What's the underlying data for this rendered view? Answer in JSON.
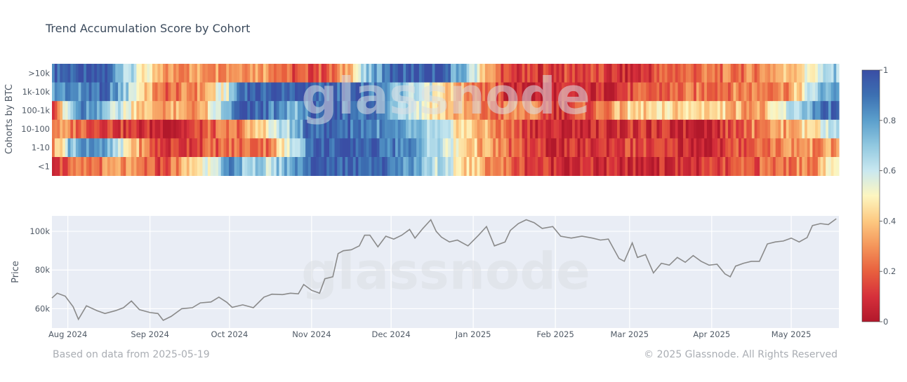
{
  "chart_data": [
    {
      "type": "heatmap",
      "title": "Trend Accumulation Score by Cohort",
      "ylabel": "Cohorts by BTC",
      "categories": [
        ">10k",
        "1k-10k",
        "100-1k",
        "10-100",
        "1-10",
        "<1"
      ],
      "x_range": [
        "2024-07-26",
        "2025-05-19"
      ],
      "zlim": [
        0,
        1
      ],
      "colorscale": [
        [
          0.0,
          "#b2182b"
        ],
        [
          0.1,
          "#d6303b"
        ],
        [
          0.2,
          "#e8603e"
        ],
        [
          0.3,
          "#f4955a"
        ],
        [
          0.4,
          "#fdc981"
        ],
        [
          0.5,
          "#fdf6c0"
        ],
        [
          0.6,
          "#c9e8f0"
        ],
        [
          0.7,
          "#91c8e0"
        ],
        [
          0.8,
          "#5b9fcc"
        ],
        [
          0.9,
          "#3c70b2"
        ],
        [
          1.0,
          "#3a4ea5"
        ]
      ],
      "colorbar_ticks": [
        "0",
        "0.2",
        "0.4",
        "0.6",
        "0.8",
        "1"
      ],
      "rows": [
        {
          "name": ">10k",
          "knots": [
            [
              "2024-07-26",
              0.95
            ],
            [
              "2024-08-15",
              0.95
            ],
            [
              "2024-08-25",
              0.6
            ],
            [
              "2024-09-05",
              0.3
            ],
            [
              "2024-10-15",
              0.35
            ],
            [
              "2024-10-25",
              0.15
            ],
            [
              "2024-11-10",
              0.2
            ],
            [
              "2024-11-20",
              0.6
            ],
            [
              "2024-12-01",
              0.95
            ],
            [
              "2024-12-20",
              0.95
            ],
            [
              "2025-01-01",
              0.6
            ],
            [
              "2025-01-08",
              0.3
            ],
            [
              "2025-01-15",
              0.1
            ],
            [
              "2025-02-15",
              0.15
            ],
            [
              "2025-03-01",
              0.05
            ],
            [
              "2025-03-15",
              0.2
            ],
            [
              "2025-04-15",
              0.25
            ],
            [
              "2025-05-01",
              0.4
            ],
            [
              "2025-05-15",
              0.6
            ],
            [
              "2025-05-19",
              0.7
            ]
          ]
        },
        {
          "name": "1k-10k",
          "knots": [
            [
              "2024-07-26",
              0.8
            ],
            [
              "2024-08-15",
              0.9
            ],
            [
              "2024-08-25",
              0.6
            ],
            [
              "2024-09-05",
              0.2
            ],
            [
              "2024-09-20",
              0.3
            ],
            [
              "2024-10-01",
              0.6
            ],
            [
              "2024-10-05",
              0.95
            ],
            [
              "2024-11-01",
              0.95
            ],
            [
              "2024-11-20",
              0.9
            ],
            [
              "2024-12-15",
              0.6
            ],
            [
              "2024-12-25",
              0.35
            ],
            [
              "2025-01-08",
              0.2
            ],
            [
              "2025-01-15",
              0.05
            ],
            [
              "2025-02-15",
              0.05
            ],
            [
              "2025-03-01",
              0.15
            ],
            [
              "2025-04-01",
              0.25
            ],
            [
              "2025-05-01",
              0.3
            ],
            [
              "2025-05-12",
              0.7
            ],
            [
              "2025-05-19",
              0.85
            ]
          ]
        },
        {
          "name": "100-1k",
          "knots": [
            [
              "2024-07-26",
              0.2
            ],
            [
              "2024-08-05",
              0.85
            ],
            [
              "2024-08-20",
              0.6
            ],
            [
              "2024-09-01",
              0.35
            ],
            [
              "2024-09-20",
              0.3
            ],
            [
              "2024-10-05",
              0.95
            ],
            [
              "2024-10-15",
              0.9
            ],
            [
              "2024-10-25",
              0.7
            ],
            [
              "2024-11-01",
              0.95
            ],
            [
              "2024-11-25",
              0.9
            ],
            [
              "2024-12-10",
              0.6
            ],
            [
              "2024-12-25",
              0.35
            ],
            [
              "2025-01-08",
              0.2
            ],
            [
              "2025-01-20",
              0.3
            ],
            [
              "2025-02-01",
              0.1
            ],
            [
              "2025-02-15",
              0.2
            ],
            [
              "2025-03-01",
              0.4
            ],
            [
              "2025-04-01",
              0.45
            ],
            [
              "2025-04-20",
              0.3
            ],
            [
              "2025-05-01",
              0.6
            ],
            [
              "2025-05-10",
              0.8
            ],
            [
              "2025-05-19",
              0.95
            ]
          ]
        },
        {
          "name": "10-100",
          "knots": [
            [
              "2024-07-26",
              0.3
            ],
            [
              "2024-08-10",
              0.2
            ],
            [
              "2024-08-25",
              0.1
            ],
            [
              "2024-09-10",
              0.05
            ],
            [
              "2024-09-25",
              0.2
            ],
            [
              "2024-10-05",
              0.25
            ],
            [
              "2024-10-15",
              0.5
            ],
            [
              "2024-10-25",
              0.7
            ],
            [
              "2024-11-01",
              0.95
            ],
            [
              "2024-11-20",
              0.9
            ],
            [
              "2024-12-10",
              0.7
            ],
            [
              "2024-12-25",
              0.5
            ],
            [
              "2025-01-08",
              0.3
            ],
            [
              "2025-01-20",
              0.15
            ],
            [
              "2025-02-01",
              0.05
            ],
            [
              "2025-03-01",
              0.1
            ],
            [
              "2025-04-01",
              0.05
            ],
            [
              "2025-04-15",
              0.25
            ],
            [
              "2025-05-01",
              0.35
            ],
            [
              "2025-05-12",
              0.5
            ],
            [
              "2025-05-19",
              0.7
            ]
          ]
        },
        {
          "name": "1-10",
          "knots": [
            [
              "2024-07-26",
              0.3
            ],
            [
              "2024-08-01",
              0.7
            ],
            [
              "2024-08-10",
              0.9
            ],
            [
              "2024-08-25",
              0.4
            ],
            [
              "2024-09-05",
              0.1
            ],
            [
              "2024-09-25",
              0.2
            ],
            [
              "2024-10-15",
              0.25
            ],
            [
              "2024-10-25",
              0.6
            ],
            [
              "2024-11-01",
              0.95
            ],
            [
              "2024-11-25",
              0.95
            ],
            [
              "2024-12-10",
              0.8
            ],
            [
              "2024-12-25",
              0.5
            ],
            [
              "2025-01-08",
              0.3
            ],
            [
              "2025-01-20",
              0.15
            ],
            [
              "2025-02-01",
              0.05
            ],
            [
              "2025-03-01",
              0.15
            ],
            [
              "2025-04-01",
              0.05
            ],
            [
              "2025-04-15",
              0.2
            ],
            [
              "2025-05-01",
              0.3
            ],
            [
              "2025-05-19",
              0.3
            ]
          ]
        },
        {
          "name": "<1",
          "knots": [
            [
              "2024-07-26",
              0.15
            ],
            [
              "2024-08-05",
              0.2
            ],
            [
              "2024-08-20",
              0.3
            ],
            [
              "2024-09-05",
              0.15
            ],
            [
              "2024-09-20",
              0.5
            ],
            [
              "2024-10-01",
              0.8
            ],
            [
              "2024-10-15",
              0.6
            ],
            [
              "2024-11-01",
              0.95
            ],
            [
              "2024-11-25",
              0.95
            ],
            [
              "2024-12-10",
              0.8
            ],
            [
              "2024-12-25",
              0.5
            ],
            [
              "2025-01-08",
              0.3
            ],
            [
              "2025-01-20",
              0.15
            ],
            [
              "2025-02-01",
              0.1
            ],
            [
              "2025-03-01",
              0.05
            ],
            [
              "2025-04-01",
              0.1
            ],
            [
              "2025-04-20",
              0.2
            ],
            [
              "2025-05-10",
              0.3
            ],
            [
              "2025-05-19",
              0.5
            ]
          ]
        }
      ]
    },
    {
      "type": "line",
      "ylabel": "Price",
      "ylim": [
        50000,
        108000
      ],
      "ytick_values": [
        60000,
        80000,
        100000
      ],
      "ytick_labels": [
        "60k",
        "80k",
        "100k"
      ],
      "x_range": [
        "2024-07-26",
        "2025-05-19"
      ],
      "xtick_dates": [
        "2024-08-01",
        "2024-09-01",
        "2024-10-01",
        "2024-11-01",
        "2024-12-01",
        "2025-01-01",
        "2025-02-01",
        "2025-03-01",
        "2025-04-01",
        "2025-05-01"
      ],
      "xtick_labels": [
        "Aug 2024",
        "Sep 2024",
        "Oct 2024",
        "Nov 2024",
        "Dec 2024",
        "Jan 2025",
        "Feb 2025",
        "Mar 2025",
        "Apr 2025",
        "May 2025"
      ],
      "series": [
        {
          "color": "#8a8a8a",
          "points": [
            [
              "2024-07-26",
              65500
            ],
            [
              "2024-07-28",
              68000
            ],
            [
              "2024-07-31",
              66500
            ],
            [
              "2024-08-03",
              61000
            ],
            [
              "2024-08-05",
              54500
            ],
            [
              "2024-08-08",
              61500
            ],
            [
              "2024-08-12",
              59000
            ],
            [
              "2024-08-15",
              57500
            ],
            [
              "2024-08-19",
              59000
            ],
            [
              "2024-08-22",
              60500
            ],
            [
              "2024-08-25",
              64000
            ],
            [
              "2024-08-28",
              59500
            ],
            [
              "2024-09-01",
              58000
            ],
            [
              "2024-09-04",
              57500
            ],
            [
              "2024-09-06",
              54000
            ],
            [
              "2024-09-09",
              56000
            ],
            [
              "2024-09-13",
              60000
            ],
            [
              "2024-09-17",
              60500
            ],
            [
              "2024-09-20",
              63000
            ],
            [
              "2024-09-24",
              63500
            ],
            [
              "2024-09-27",
              66000
            ],
            [
              "2024-09-30",
              63300
            ],
            [
              "2024-10-02",
              60700
            ],
            [
              "2024-10-06",
              62000
            ],
            [
              "2024-10-10",
              60500
            ],
            [
              "2024-10-14",
              66000
            ],
            [
              "2024-10-17",
              67500
            ],
            [
              "2024-10-21",
              67300
            ],
            [
              "2024-10-24",
              68000
            ],
            [
              "2024-10-27",
              67700
            ],
            [
              "2024-10-29",
              72500
            ],
            [
              "2024-11-01",
              69500
            ],
            [
              "2024-11-04",
              68000
            ],
            [
              "2024-11-06",
              75500
            ],
            [
              "2024-11-09",
              76500
            ],
            [
              "2024-11-11",
              88500
            ],
            [
              "2024-11-13",
              90000
            ],
            [
              "2024-11-16",
              90500
            ],
            [
              "2024-11-19",
              92500
            ],
            [
              "2024-11-21",
              98000
            ],
            [
              "2024-11-23",
              98000
            ],
            [
              "2024-11-26",
              92000
            ],
            [
              "2024-11-29",
              97500
            ],
            [
              "2024-12-02",
              96000
            ],
            [
              "2024-12-05",
              98000
            ],
            [
              "2024-12-08",
              101000
            ],
            [
              "2024-12-10",
              96500
            ],
            [
              "2024-12-13",
              101500
            ],
            [
              "2024-12-16",
              106000
            ],
            [
              "2024-12-18",
              100000
            ],
            [
              "2024-12-20",
              97000
            ],
            [
              "2024-12-23",
              94500
            ],
            [
              "2024-12-26",
              95500
            ],
            [
              "2024-12-30",
              92500
            ],
            [
              "2025-01-03",
              98000
            ],
            [
              "2025-01-06",
              102500
            ],
            [
              "2025-01-09",
              92500
            ],
            [
              "2025-01-13",
              94500
            ],
            [
              "2025-01-15",
              100500
            ],
            [
              "2025-01-18",
              104000
            ],
            [
              "2025-01-21",
              106000
            ],
            [
              "2025-01-24",
              104500
            ],
            [
              "2025-01-27",
              101500
            ],
            [
              "2025-01-31",
              102500
            ],
            [
              "2025-02-03",
              97500
            ],
            [
              "2025-02-07",
              96500
            ],
            [
              "2025-02-11",
              97500
            ],
            [
              "2025-02-15",
              96500
            ],
            [
              "2025-02-18",
              95500
            ],
            [
              "2025-02-21",
              96000
            ],
            [
              "2025-02-25",
              86000
            ],
            [
              "2025-02-27",
              84500
            ],
            [
              "2025-03-02",
              94000
            ],
            [
              "2025-03-04",
              86500
            ],
            [
              "2025-03-07",
              88000
            ],
            [
              "2025-03-10",
              78500
            ],
            [
              "2025-03-13",
              83500
            ],
            [
              "2025-03-16",
              82500
            ],
            [
              "2025-03-19",
              86500
            ],
            [
              "2025-03-22",
              84000
            ],
            [
              "2025-03-25",
              87500
            ],
            [
              "2025-03-28",
              84500
            ],
            [
              "2025-03-31",
              82500
            ],
            [
              "2025-04-03",
              83000
            ],
            [
              "2025-04-06",
              78000
            ],
            [
              "2025-04-08",
              76500
            ],
            [
              "2025-04-10",
              82000
            ],
            [
              "2025-04-13",
              83500
            ],
            [
              "2025-04-16",
              84500
            ],
            [
              "2025-04-19",
              84500
            ],
            [
              "2025-04-22",
              93500
            ],
            [
              "2025-04-25",
              94500
            ],
            [
              "2025-04-28",
              95000
            ],
            [
              "2025-05-01",
              96500
            ],
            [
              "2025-05-04",
              94500
            ],
            [
              "2025-05-07",
              96800
            ],
            [
              "2025-05-09",
              103000
            ],
            [
              "2025-05-12",
              104000
            ],
            [
              "2025-05-15",
              103500
            ],
            [
              "2025-05-18",
              106500
            ]
          ]
        }
      ]
    }
  ],
  "watermark": "glassnode",
  "footer": {
    "left": "Based on data from 2025-05-19",
    "right": "© 2025 Glassnode. All Rights Reserved"
  }
}
